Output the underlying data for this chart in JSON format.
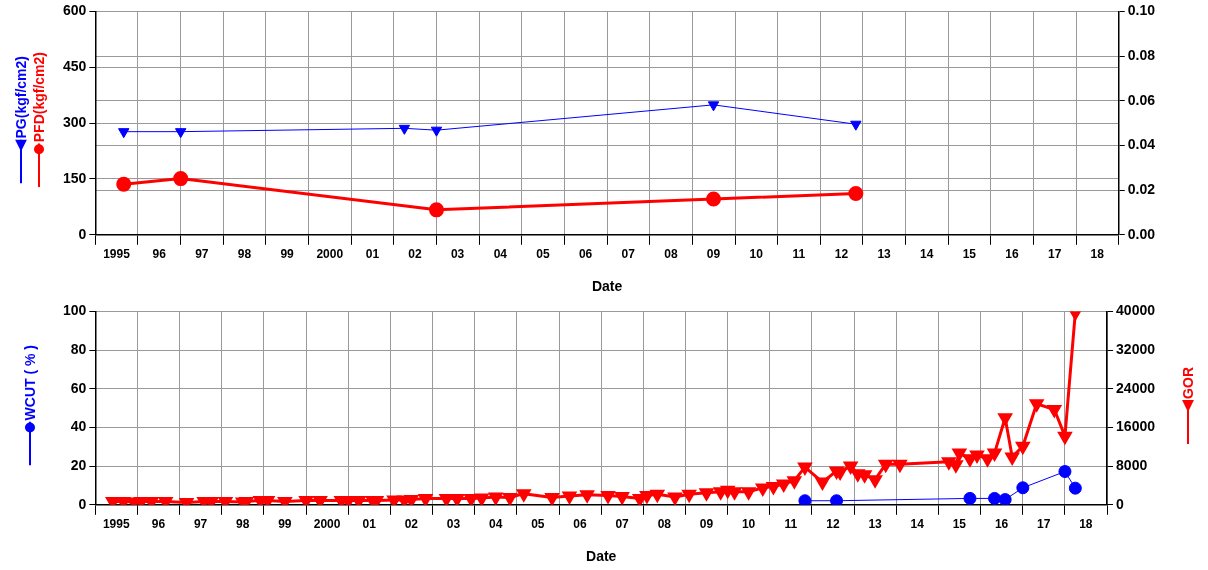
{
  "chart_data": [
    {
      "type": "line",
      "xlabel": "Date",
      "legend": "left",
      "grid": true,
      "xlim": [
        "1995",
        "2019"
      ],
      "xticks": [
        {
          "value": "1995",
          "label": null
        },
        {
          "value": "1995-07",
          "label": "1995"
        },
        {
          "value": "1996",
          "label": null
        },
        {
          "value": "1996-07",
          "label": "96"
        },
        {
          "value": "1997",
          "label": null
        },
        {
          "value": "1997-07",
          "label": "97"
        },
        {
          "value": "1998",
          "label": null
        },
        {
          "value": "1998-07",
          "label": "98"
        },
        {
          "value": "1999",
          "label": null
        },
        {
          "value": "1999-07",
          "label": "99"
        },
        {
          "value": "2000",
          "label": null
        },
        {
          "value": "2000-07",
          "label": "2000"
        },
        {
          "value": "2001",
          "label": null
        },
        {
          "value": "2001-07",
          "label": "01"
        },
        {
          "value": "2002",
          "label": null
        },
        {
          "value": "2002-07",
          "label": "02"
        },
        {
          "value": "2003",
          "label": null
        },
        {
          "value": "2003-07",
          "label": "03"
        },
        {
          "value": "2004",
          "label": null
        },
        {
          "value": "2004-07",
          "label": "04"
        },
        {
          "value": "2005",
          "label": null
        },
        {
          "value": "2005-07",
          "label": "05"
        },
        {
          "value": "2006",
          "label": null
        },
        {
          "value": "2006-07",
          "label": "06"
        },
        {
          "value": "2007",
          "label": null
        },
        {
          "value": "2007-07",
          "label": "07"
        },
        {
          "value": "2008",
          "label": null
        },
        {
          "value": "2008-07",
          "label": "08"
        },
        {
          "value": "2009",
          "label": null
        },
        {
          "value": "2009-07",
          "label": "09"
        },
        {
          "value": "2010",
          "label": null
        },
        {
          "value": "2010-07",
          "label": "10"
        },
        {
          "value": "2011",
          "label": null
        },
        {
          "value": "2011-07",
          "label": "11"
        },
        {
          "value": "2012",
          "label": null
        },
        {
          "value": "2012-07",
          "label": "12"
        },
        {
          "value": "2013",
          "label": null
        },
        {
          "value": "2013-07",
          "label": "13"
        },
        {
          "value": "2014",
          "label": null
        },
        {
          "value": "2014-07",
          "label": "14"
        },
        {
          "value": "2015",
          "label": null
        },
        {
          "value": "2015-07",
          "label": "15"
        },
        {
          "value": "2016",
          "label": null
        },
        {
          "value": "2016-07",
          "label": "16"
        },
        {
          "value": "2017",
          "label": null
        },
        {
          "value": "2017-07",
          "label": "17"
        },
        {
          "value": "2018",
          "label": null
        },
        {
          "value": "2018-07",
          "label": "18"
        },
        {
          "value": "2019",
          "label": null
        }
      ],
      "ylim": [
        0,
        600
      ],
      "yticks": [
        0,
        150,
        300,
        450,
        600
      ],
      "y2lim": [
        0,
        0.1
      ],
      "y2ticks": [
        {
          "value": 0,
          "label": "0.00"
        },
        {
          "value": 0.02,
          "label": "0.02"
        },
        {
          "value": 0.04,
          "label": "0.04"
        },
        {
          "value": 0.06,
          "label": "0.06"
        },
        {
          "value": 0.08,
          "label": "0.08"
        },
        {
          "value": 0.1,
          "label": "0.10"
        }
      ],
      "series": [
        {
          "name": "PG(kgf/cm2)",
          "color": "#0000ff",
          "marker": "triangle",
          "x": [
            "1995-09",
            "1997-01",
            "2002-04",
            "2003-01",
            "2009-07",
            "2012-11"
          ],
          "values": [
            277,
            277,
            286,
            281,
            349,
            297
          ]
        },
        {
          "name": "PFD(kgf/cm2)",
          "color": "#ff0000",
          "marker": "circle",
          "x": [
            "1995-09",
            "1997-01",
            "2003-01",
            "2009-07",
            "2012-11"
          ],
          "values": [
            136,
            151,
            67,
            96,
            111
          ]
        }
      ]
    },
    {
      "type": "line",
      "xlabel": "Date",
      "ylabel": "WCUT ( % )",
      "y2label": "GOR",
      "grid": true,
      "xlim": [
        "1995",
        "2019"
      ],
      "xticks": [
        {
          "value": "1995",
          "label": null
        },
        {
          "value": "1995-07",
          "label": "1995"
        },
        {
          "value": "1996",
          "label": null
        },
        {
          "value": "1996-07",
          "label": "96"
        },
        {
          "value": "1997",
          "label": null
        },
        {
          "value": "1997-07",
          "label": "97"
        },
        {
          "value": "1998",
          "label": null
        },
        {
          "value": "1998-07",
          "label": "98"
        },
        {
          "value": "1999",
          "label": null
        },
        {
          "value": "1999-07",
          "label": "99"
        },
        {
          "value": "2000",
          "label": null
        },
        {
          "value": "2000-07",
          "label": "2000"
        },
        {
          "value": "2001",
          "label": null
        },
        {
          "value": "2001-07",
          "label": "01"
        },
        {
          "value": "2002",
          "label": null
        },
        {
          "value": "2002-07",
          "label": "02"
        },
        {
          "value": "2003",
          "label": null
        },
        {
          "value": "2003-07",
          "label": "03"
        },
        {
          "value": "2004",
          "label": null
        },
        {
          "value": "2004-07",
          "label": "04"
        },
        {
          "value": "2005",
          "label": null
        },
        {
          "value": "2005-07",
          "label": "05"
        },
        {
          "value": "2006",
          "label": null
        },
        {
          "value": "2006-07",
          "label": "06"
        },
        {
          "value": "2007",
          "label": null
        },
        {
          "value": "2007-07",
          "label": "07"
        },
        {
          "value": "2008",
          "label": null
        },
        {
          "value": "2008-07",
          "label": "08"
        },
        {
          "value": "2009",
          "label": null
        },
        {
          "value": "2009-07",
          "label": "09"
        },
        {
          "value": "2010",
          "label": null
        },
        {
          "value": "2010-07",
          "label": "10"
        },
        {
          "value": "2011",
          "label": null
        },
        {
          "value": "2011-07",
          "label": "11"
        },
        {
          "value": "2012",
          "label": null
        },
        {
          "value": "2012-07",
          "label": "12"
        },
        {
          "value": "2013",
          "label": null
        },
        {
          "value": "2013-07",
          "label": "13"
        },
        {
          "value": "2014",
          "label": null
        },
        {
          "value": "2014-07",
          "label": "14"
        },
        {
          "value": "2015",
          "label": null
        },
        {
          "value": "2015-07",
          "label": "15"
        },
        {
          "value": "2016",
          "label": null
        },
        {
          "value": "2016-07",
          "label": "16"
        },
        {
          "value": "2017",
          "label": null
        },
        {
          "value": "2017-07",
          "label": "17"
        },
        {
          "value": "2018",
          "label": null
        },
        {
          "value": "2018-07",
          "label": "18"
        },
        {
          "value": "2019",
          "label": null
        }
      ],
      "ylim": [
        0,
        100
      ],
      "yticks": [
        0,
        20,
        40,
        60,
        80,
        100
      ],
      "y2lim": [
        0,
        40000
      ],
      "y2ticks": [
        0,
        8000,
        16000,
        24000,
        32000,
        40000
      ],
      "series": [
        {
          "color": "#0000ff",
          "marker": "circle",
          "x": [
            "2011-11",
            "2012-08",
            "2015-10",
            "2016-05",
            "2016-08",
            "2017-01",
            "2018-01",
            "2018-04"
          ],
          "values": [
            2.1,
            2.1,
            3.3,
            3.3,
            2.7,
            8.8,
            17.2,
            8.6
          ]
        },
        {
          "color": "#ff0000",
          "marker": "triangle",
          "axis": "y2",
          "x": [
            "1995-06",
            "1995-09",
            "1995-12",
            "1996-02",
            "1996-05",
            "1996-09",
            "1997-03",
            "1997-08",
            "1997-10",
            "1998-02",
            "1998-07",
            "1998-08",
            "1998-12",
            "1999-02",
            "1999-07",
            "2000-01",
            "2000-05",
            "2000-11",
            "2001-01",
            "2001-04",
            "2001-08",
            "2001-09",
            "2002-02",
            "2002-05",
            "2002-07",
            "2002-11",
            "2003-05",
            "2003-08",
            "2003-12",
            "2004-03",
            "2004-07",
            "2004-11",
            "2005-03",
            "2005-11",
            "2006-04",
            "2006-09",
            "2007-03",
            "2007-07",
            "2007-12",
            "2008-02",
            "2008-05",
            "2008-10",
            "2009-02",
            "2009-07",
            "2009-11",
            "2010-01",
            "2010-03",
            "2010-07",
            "2010-11",
            "2011-02",
            "2011-05",
            "2011-08",
            "2011-11",
            "2012-04",
            "2012-08",
            "2012-09",
            "2012-12",
            "2013-02",
            "2013-04",
            "2013-07",
            "2013-10",
            "2014-02",
            "2015-04",
            "2015-06",
            "2015-07",
            "2015-10",
            "2015-12",
            "2016-03",
            "2016-05",
            "2016-08",
            "2016-10",
            "2017-01",
            "2017-05",
            "2017-10",
            "2018-01",
            "2018-04"
          ],
          "values": [
            700,
            700,
            600,
            700,
            700,
            700,
            500,
            700,
            700,
            700,
            600,
            700,
            900,
            900,
            700,
            900,
            900,
            900,
            900,
            900,
            900,
            900,
            1000,
            1000,
            1100,
            1300,
            1300,
            1300,
            1300,
            1400,
            1600,
            1500,
            2300,
            1500,
            1800,
            2100,
            1900,
            1700,
            1300,
            1900,
            2200,
            1600,
            2200,
            2500,
            2700,
            3000,
            2700,
            2700,
            3500,
            3800,
            4300,
            5000,
            7800,
            4700,
            7000,
            6800,
            8000,
            6400,
            6200,
            5200,
            8400,
            8400,
            8900,
            8300,
            10700,
            9500,
            10300,
            9500,
            10700,
            18000,
            9900,
            12100,
            20900,
            19700,
            14200,
            39800
          ]
        }
      ]
    }
  ]
}
